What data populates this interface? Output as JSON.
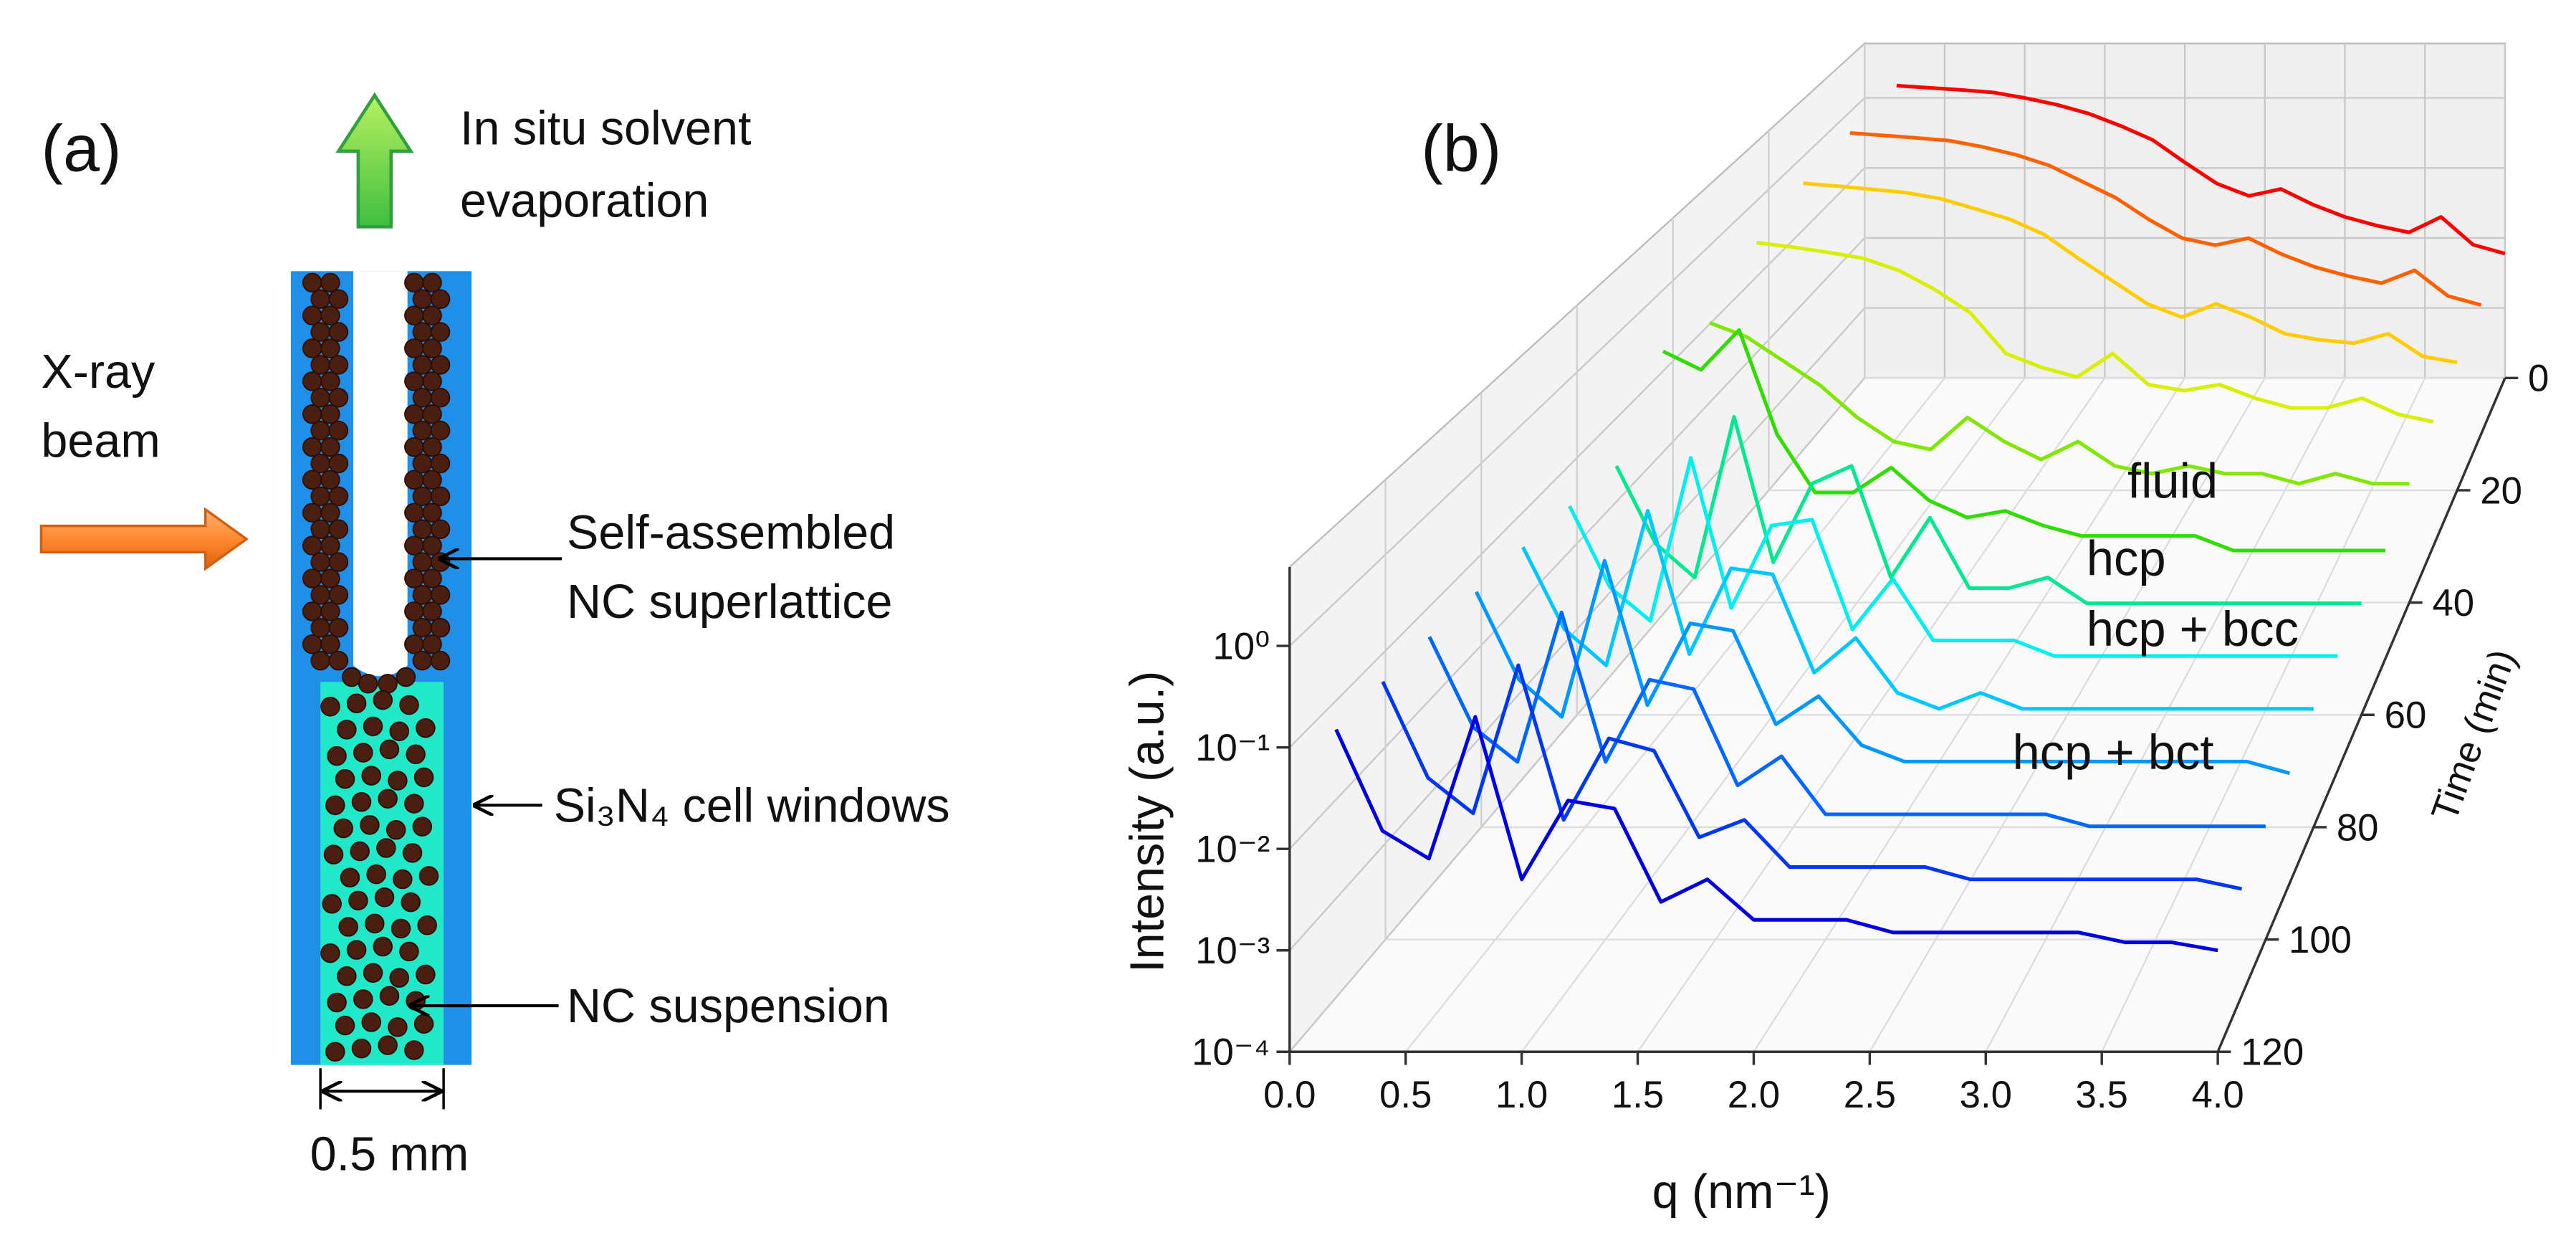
{
  "panel_a": {
    "label": "(a)",
    "evaporation": [
      "In situ solvent",
      "evaporation"
    ],
    "beam": [
      "X-ray",
      "beam"
    ],
    "superlattice": [
      "Self-assembled",
      "NC superlattice"
    ],
    "windows": "Si₃N₄ cell windows",
    "suspension": "NC suspension",
    "width": "0.5 mm"
  },
  "chart_data": {
    "type": "waterfall3d",
    "panel_label": "(b)",
    "xlabel": "q (nm⁻¹)",
    "ylabel": "Intensity (a.u.)",
    "zlabel": "Time (min)",
    "log_y": true,
    "grid": true,
    "x": [
      0.2,
      0.4,
      0.6,
      0.8,
      1.0,
      1.2,
      1.4,
      1.6,
      1.8,
      2.0,
      2.2,
      2.4,
      2.6,
      2.8,
      3.0,
      3.2,
      3.4,
      3.6,
      3.8,
      4.0
    ],
    "xlim": [
      0,
      4
    ],
    "xticks": [
      {
        "value": 0,
        "label": "0.0"
      },
      0.5,
      {
        "value": 1,
        "label": "1.0"
      },
      1.5,
      {
        "value": 2,
        "label": "2.0"
      },
      2.5,
      {
        "value": 3,
        "label": "3.0"
      },
      3.5,
      {
        "value": 4,
        "label": "4.0"
      }
    ],
    "ylim": [
      0.0001,
      6
    ],
    "yticks": [
      {
        "value": 0.0001,
        "label": "10⁻⁴"
      },
      {
        "value": 0.001,
        "label": "10⁻³"
      },
      {
        "value": 0.01,
        "label": "10⁻²"
      },
      {
        "value": 0.1,
        "label": "10⁻¹"
      },
      {
        "value": 1,
        "label": "10⁰"
      }
    ],
    "zlim": [
      0,
      120
    ],
    "zticks": [
      0,
      20,
      40,
      60,
      80,
      100,
      120
    ],
    "annotations": [
      "fluid",
      "hcp",
      "hcp + bcc",
      "hcp + bct"
    ],
    "series": [
      {
        "time": 0,
        "color": "#ff0000",
        "values": [
          1.5,
          1.4,
          1.3,
          1.2,
          1.0,
          0.8,
          0.6,
          0.4,
          0.25,
          0.12,
          0.06,
          0.04,
          0.05,
          0.03,
          0.02,
          0.015,
          0.012,
          0.02,
          0.008,
          0.006
        ]
      },
      {
        "time": 10,
        "color": "#ff6000",
        "values": [
          1.4,
          1.3,
          1.2,
          1.1,
          0.9,
          0.7,
          0.5,
          0.3,
          0.18,
          0.09,
          0.05,
          0.04,
          0.05,
          0.03,
          0.02,
          0.015,
          0.012,
          0.018,
          0.008,
          0.006
        ]
      },
      {
        "time": 20,
        "color": "#ffcc00",
        "values": [
          1.2,
          1.1,
          1.0,
          0.9,
          0.75,
          0.55,
          0.4,
          0.25,
          0.12,
          0.06,
          0.03,
          0.02,
          0.03,
          0.02,
          0.012,
          0.01,
          0.009,
          0.012,
          0.006,
          0.005
        ]
      },
      {
        "time": 30,
        "color": "#d8f000",
        "values": [
          0.8,
          0.7,
          0.6,
          0.5,
          0.35,
          0.2,
          0.1,
          0.03,
          0.02,
          0.015,
          0.03,
          0.012,
          0.01,
          0.012,
          0.008,
          0.006,
          0.006,
          0.008,
          0.005,
          0.004
        ]
      },
      {
        "time": 40,
        "color": "#80e800",
        "values": [
          0.3,
          0.2,
          0.1,
          0.05,
          0.02,
          0.01,
          0.008,
          0.02,
          0.01,
          0.006,
          0.01,
          0.005,
          0.004,
          0.005,
          0.004,
          0.004,
          0.003,
          0.004,
          0.003,
          0.003
        ]
      },
      {
        "time": 50,
        "color": "#30dd00",
        "values": [
          0.5,
          0.3,
          0.9,
          0.05,
          0.01,
          0.01,
          0.02,
          0.008,
          0.005,
          0.006,
          0.004,
          0.003,
          0.003,
          0.003,
          0.003,
          0.002,
          0.002,
          0.002,
          0.002,
          0.002
        ]
      },
      {
        "time": 60,
        "color": "#00e890",
        "values": [
          0.08,
          0.01,
          0.004,
          0.3,
          0.006,
          0.05,
          0.08,
          0.004,
          0.02,
          0.003,
          0.003,
          0.004,
          0.002,
          0.002,
          0.002,
          0.002,
          0.002,
          0.002,
          0.002,
          0.002
        ]
      },
      {
        "time": 70,
        "color": "#00f0f0",
        "values": [
          0.1,
          0.012,
          0.005,
          0.35,
          0.007,
          0.06,
          0.07,
          0.004,
          0.015,
          0.003,
          0.003,
          0.003,
          0.002,
          0.002,
          0.002,
          0.002,
          0.002,
          0.002,
          0.002,
          0.002
        ]
      },
      {
        "time": 80,
        "color": "#00c8ff",
        "values": [
          0.12,
          0.015,
          0.006,
          0.3,
          0.008,
          0.07,
          0.06,
          0.005,
          0.012,
          0.003,
          0.002,
          0.003,
          0.002,
          0.002,
          0.002,
          0.002,
          0.002,
          0.002,
          0.002,
          0.002
        ]
      },
      {
        "time": 90,
        "color": "#0098ff",
        "values": [
          0.13,
          0.015,
          0.006,
          0.28,
          0.008,
          0.06,
          0.05,
          0.005,
          0.01,
          0.003,
          0.002,
          0.002,
          0.002,
          0.002,
          0.002,
          0.002,
          0.002,
          0.002,
          0.002,
          0.0015
        ]
      },
      {
        "time": 100,
        "color": "#0068ff",
        "values": [
          0.14,
          0.016,
          0.007,
          0.25,
          0.007,
          0.05,
          0.04,
          0.004,
          0.008,
          0.002,
          0.002,
          0.002,
          0.002,
          0.002,
          0.002,
          0.0015,
          0.0015,
          0.0015,
          0.0015,
          0.0015
        ]
      },
      {
        "time": 110,
        "color": "#0038f0",
        "values": [
          0.15,
          0.016,
          0.007,
          0.22,
          0.006,
          0.04,
          0.03,
          0.004,
          0.006,
          0.002,
          0.002,
          0.002,
          0.002,
          0.0015,
          0.0015,
          0.0015,
          0.0015,
          0.0015,
          0.0015,
          0.0012
        ]
      },
      {
        "time": 120,
        "color": "#0000e0",
        "values": [
          0.15,
          0.015,
          0.008,
          0.2,
          0.005,
          0.03,
          0.025,
          0.003,
          0.005,
          0.002,
          0.002,
          0.002,
          0.0015,
          0.0015,
          0.0015,
          0.0015,
          0.0015,
          0.0012,
          0.0012,
          0.001
        ]
      }
    ]
  }
}
